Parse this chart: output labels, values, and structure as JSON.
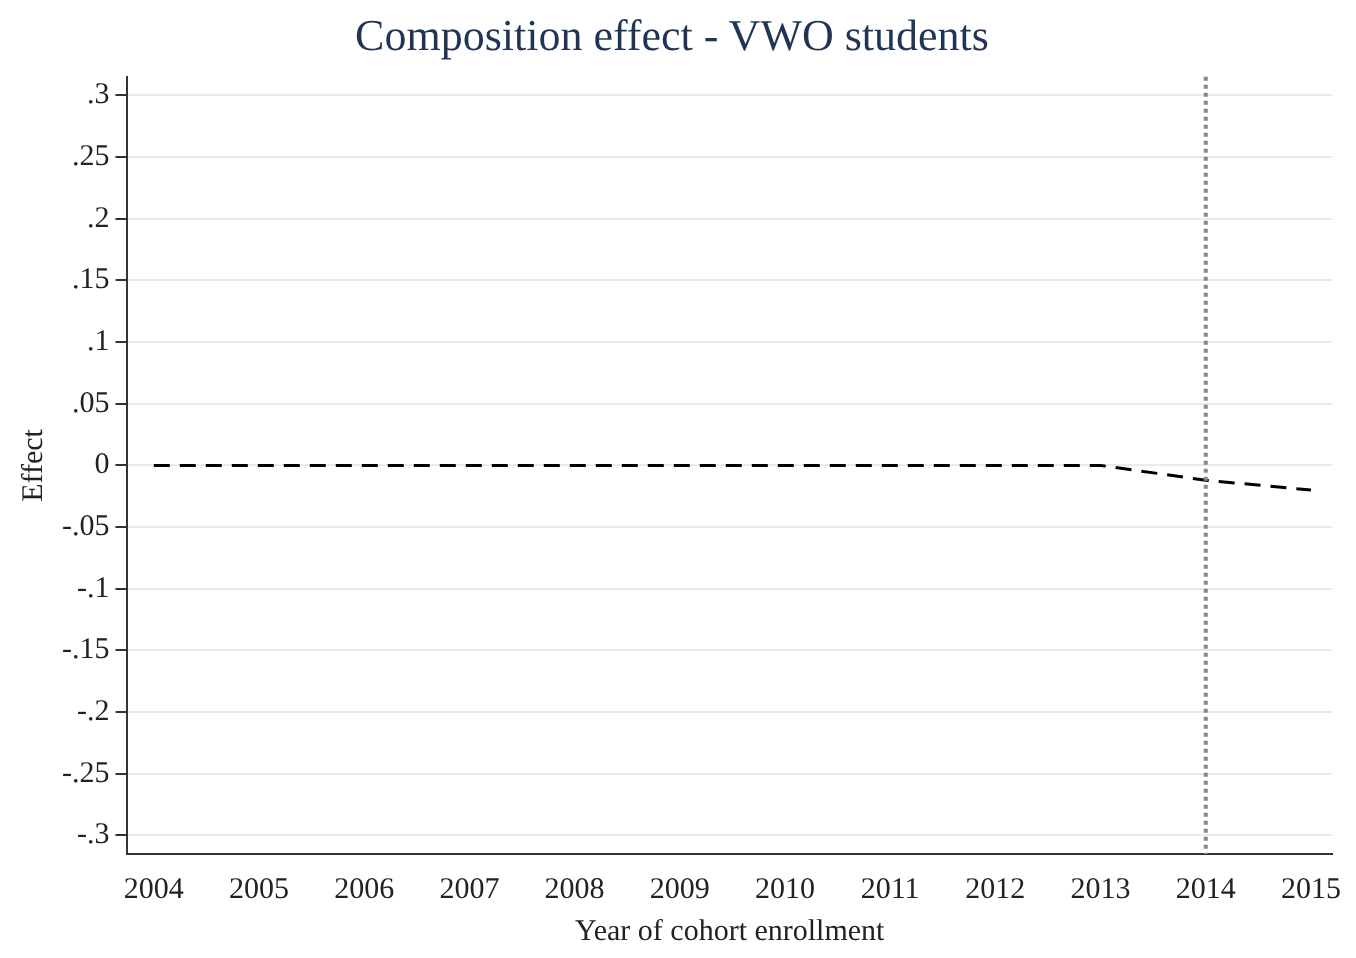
{
  "chart_data": {
    "type": "line",
    "title": "Composition effect - VWO students",
    "xlabel": "Year of cohort enrollment",
    "ylabel": "Effect",
    "x": [
      2004,
      2005,
      2006,
      2007,
      2008,
      2009,
      2010,
      2011,
      2012,
      2013,
      2014,
      2015
    ],
    "series": [
      {
        "color": "#000000",
        "values": [
          0,
          0,
          0,
          0,
          0,
          0,
          0,
          0,
          0,
          0,
          -0.012,
          -0.02
        ]
      }
    ],
    "xlim": [
      2003.75,
      2015.2
    ],
    "xticks": [
      2004,
      2005,
      2006,
      2007,
      2008,
      2009,
      2010,
      2011,
      2012,
      2013,
      2014,
      2015
    ],
    "ylim": [
      -0.315,
      0.315
    ],
    "yticks": [
      {
        "value": 0.3,
        "label": ".3"
      },
      {
        "value": 0.25,
        "label": ".25"
      },
      {
        "value": 0.2,
        "label": ".2"
      },
      {
        "value": 0.15,
        "label": ".15"
      },
      {
        "value": 0.1,
        "label": ".1"
      },
      {
        "value": 0.05,
        "label": ".05"
      },
      0,
      {
        "value": -0.05,
        "label": "-.05"
      },
      {
        "value": -0.1,
        "label": "-.1"
      },
      {
        "value": -0.15,
        "label": "-.15"
      },
      {
        "value": -0.2,
        "label": "-.2"
      },
      {
        "value": -0.25,
        "label": "-.25"
      },
      {
        "value": -0.3,
        "label": "-.3"
      }
    ],
    "grid": "y",
    "legend": false,
    "marker": "none",
    "line_style": "dashed",
    "ref_lines": [
      {
        "axis": "x",
        "value": 2014,
        "color": "#888888",
        "line_style": "dotted"
      }
    ]
  }
}
